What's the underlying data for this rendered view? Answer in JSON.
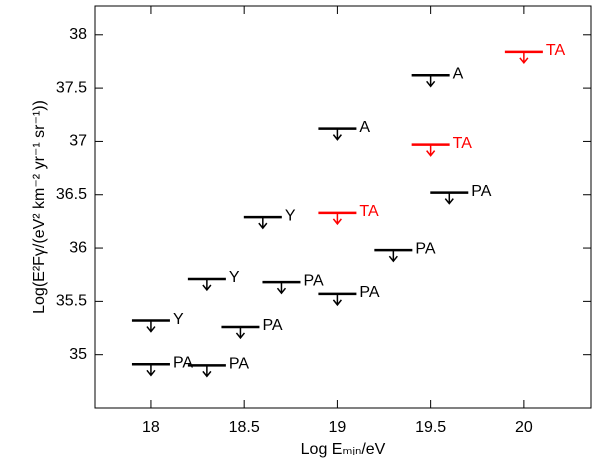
{
  "chart_data": {
    "type": "upper-limit",
    "x_label": "Log Eₘᵢₙ/eV",
    "y_label": "Log(E²Fγ/(eV² km⁻² yr⁻¹ sr⁻¹))",
    "xlim": [
      17.7,
      20.36
    ],
    "ylim": [
      34.5,
      38.27
    ],
    "xticks": [
      18,
      18.5,
      19,
      19.5,
      20
    ],
    "yticks": [
      35,
      35.5,
      36,
      36.5,
      37,
      37.5,
      38
    ],
    "series": [
      {
        "name": "Y",
        "color": "#000000",
        "x": [
          18,
          18.3,
          18.6
        ],
        "values": [
          35.32,
          35.71,
          36.29
        ]
      },
      {
        "name": "PA",
        "color": "#000000",
        "x": [
          18,
          18.3,
          18.48,
          18.7,
          19,
          19.3,
          19.6
        ],
        "values": [
          34.91,
          34.9,
          35.26,
          35.68,
          35.57,
          35.98,
          36.52
        ]
      },
      {
        "name": "A",
        "color": "#000000",
        "x": [
          19,
          19.5
        ],
        "values": [
          37.12,
          37.62
        ]
      },
      {
        "name": "TA",
        "color": "#ff0000",
        "x": [
          19,
          19.5,
          20
        ],
        "values": [
          36.33,
          36.97,
          37.84
        ]
      }
    ]
  }
}
